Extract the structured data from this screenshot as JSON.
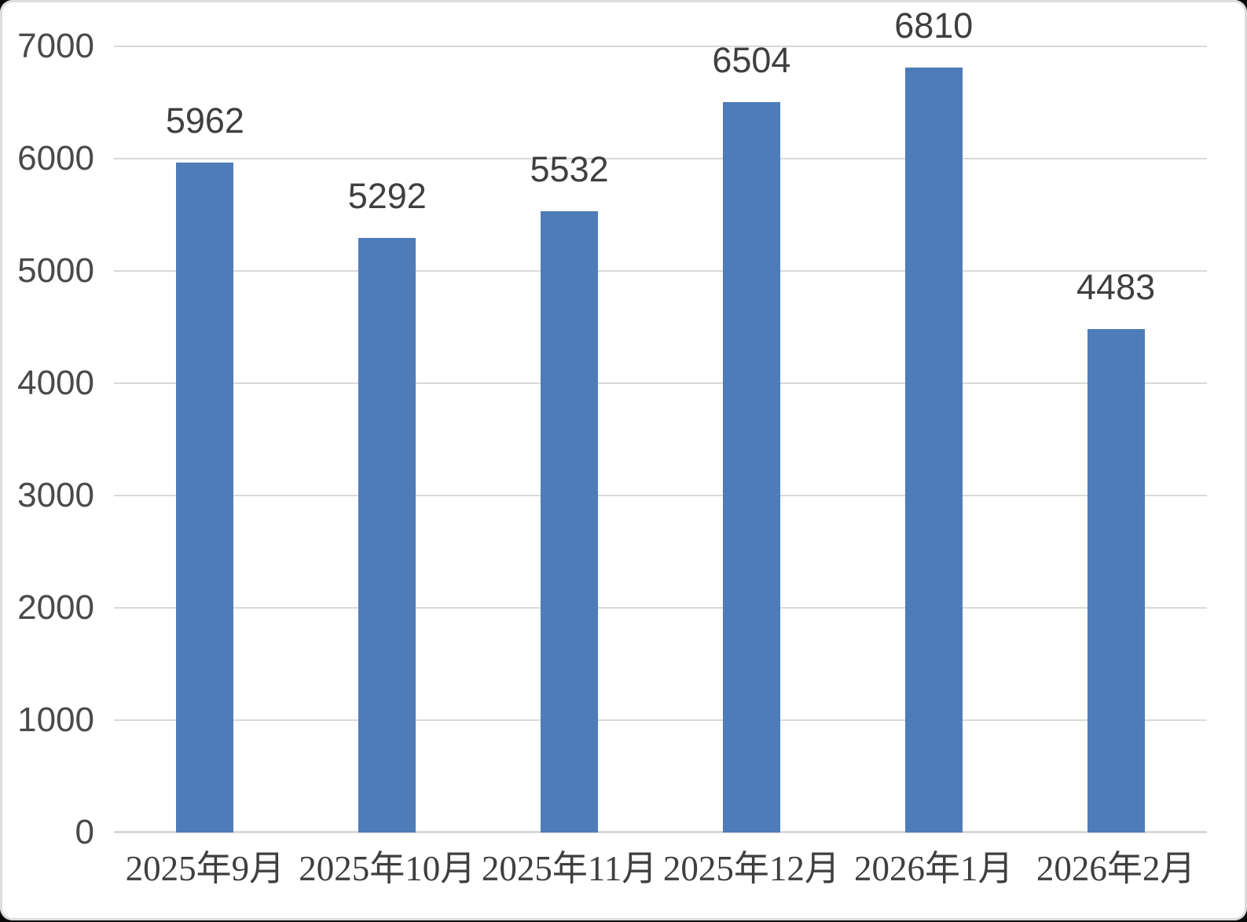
{
  "chart_data": {
    "type": "bar",
    "title": "",
    "xlabel": "",
    "ylabel": "",
    "categories": [
      "2025年9月",
      "2025年10月",
      "2025年11月",
      "2025年12月",
      "2026年1月",
      "2026年2月"
    ],
    "values": [
      5962,
      5292,
      5532,
      6504,
      6810,
      4483
    ],
    "data_labels": [
      "5962",
      "5292",
      "5532",
      "6504",
      "6810",
      "4483"
    ],
    "ylim": [
      0,
      7000
    ],
    "yticks": [
      0,
      1000,
      2000,
      3000,
      4000,
      5000,
      6000,
      7000
    ],
    "ytick_labels": [
      "0",
      "1000",
      "2000",
      "3000",
      "4000",
      "5000",
      "6000",
      "7000"
    ],
    "grid": true,
    "legend": "none",
    "colors": {
      "bar": "#4E7CB8",
      "gridline": "#D9D9D9",
      "axis_line": "#D8D8D8",
      "data_label": "#3F3F3F",
      "tick_label": "#4A4A4A",
      "category_label": "#3F3F3F",
      "background": "#FFFFFF"
    }
  }
}
